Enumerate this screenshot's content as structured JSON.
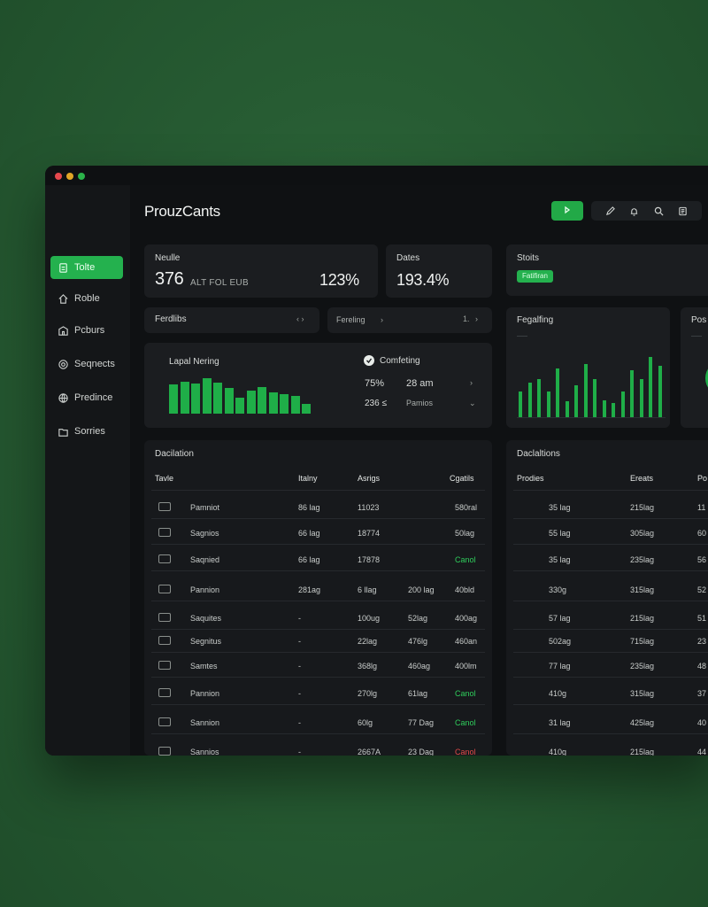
{
  "app": {
    "title": "ProuzCants"
  },
  "sidebar": {
    "items": [
      {
        "label": "Tolte",
        "icon": "user-icon",
        "active": true
      },
      {
        "label": "Roble",
        "icon": "home-icon",
        "active": false
      },
      {
        "label": "Pcburs",
        "icon": "building-icon",
        "active": false
      },
      {
        "label": "Seqnects",
        "icon": "settings-icon",
        "active": false
      },
      {
        "label": "Predince",
        "icon": "globe-icon",
        "active": false
      },
      {
        "label": "Sorries",
        "icon": "folder-icon",
        "active": false
      }
    ]
  },
  "toolbar": {
    "icons": [
      "edit-icon",
      "bell-icon",
      "search-icon",
      "document-icon"
    ],
    "primary_icon": "play-icon"
  },
  "stats": {
    "card1": {
      "label": "Neulle",
      "value": "376",
      "sub": "ALT FOL EUB",
      "pct": "123%"
    },
    "card2": {
      "label": "Dates",
      "value": "193.4%"
    },
    "card3": {
      "label": "Stoits",
      "badge": "Fatifiran"
    },
    "filter1": {
      "label": "Ferdlibs"
    },
    "filter2": {
      "label": "Fereling",
      "page": "1."
    },
    "chart_title": "Lapal Nering",
    "legend": {
      "title": "Comfeting",
      "row1_a": "75%",
      "row1_b": "28 am",
      "row2_a": "236 ≤",
      "row2_b": "Pamios"
    },
    "right_chart_title": "Fegalfing",
    "far_right_label": "Pos"
  },
  "chart_data": [
    {
      "type": "bar",
      "title": "Lapal Nering",
      "values": [
        34,
        37,
        35,
        41,
        36,
        30,
        18,
        27,
        31,
        25,
        22,
        20,
        11
      ],
      "ylim": [
        0,
        45
      ]
    },
    {
      "type": "bar",
      "title": "Fegalfing",
      "values": [
        22,
        30,
        33,
        22,
        42,
        14,
        28,
        46,
        33,
        15,
        12,
        22,
        41,
        33,
        52,
        45
      ],
      "ylim": [
        0,
        60
      ]
    }
  ],
  "table_left": {
    "title": "Dacilation",
    "headers": [
      "Tavle",
      "Italny",
      "Asrigs",
      "Cgatils"
    ],
    "rows": [
      {
        "name": "Pamniot",
        "c1": "86 lag",
        "c2": "11023",
        "c3": "",
        "c4": "580ral",
        "tone": ""
      },
      {
        "name": "Sagnios",
        "c1": "66 lag",
        "c2": "18774",
        "c3": "",
        "c4": "50lag",
        "tone": ""
      },
      {
        "name": "Saqnied",
        "c1": "66 lag",
        "c2": "17878",
        "c3": "",
        "c4": "Canol",
        "tone": "green"
      },
      {
        "name": "Pannion",
        "c1": "281ag",
        "c2": "6 llag",
        "c3": "200 lag",
        "c4": "40bld",
        "tone": ""
      },
      {
        "name": "Saquites",
        "c1": "-",
        "c2": "100ug",
        "c3": "52lag",
        "c4": "400ag",
        "tone": ""
      },
      {
        "name": "Segnitus",
        "c1": "-",
        "c2": "22lag",
        "c3": "476lg",
        "c4": "460an",
        "tone": ""
      },
      {
        "name": "Samtes",
        "c1": "-",
        "c2": "368lg",
        "c3": "460ag",
        "c4": "400lm",
        "tone": ""
      },
      {
        "name": "Pannion",
        "c1": "-",
        "c2": "270lg",
        "c3": "61lag",
        "c4": "Canol",
        "tone": "green"
      },
      {
        "name": "Sannion",
        "c1": "-",
        "c2": "60lg",
        "c3": "77 Dag",
        "c4": "Canol",
        "tone": "green"
      },
      {
        "name": "Sannios",
        "c1": "-",
        "c2": "2667A",
        "c3": "23 Dag",
        "c4": "Canol",
        "tone": "red"
      }
    ]
  },
  "table_right": {
    "title": "Daclaltions",
    "headers": [
      "Prodies",
      "Ereats",
      "Po"
    ],
    "rows": [
      {
        "c1": "35 lag",
        "c2": "215lag",
        "c3": "11"
      },
      {
        "c1": "55 lag",
        "c2": "305lag",
        "c3": "60"
      },
      {
        "c1": "35 lag",
        "c2": "235lag",
        "c3": "56"
      },
      {
        "c1": "330g",
        "c2": "315lag",
        "c3": "52"
      },
      {
        "c1": "57 lag",
        "c2": "215lag",
        "c3": "51"
      },
      {
        "c1": "502ag",
        "c2": "715lag",
        "c3": "23"
      },
      {
        "c1": "77 lag",
        "c2": "235lag",
        "c3": "48"
      },
      {
        "c1": "410g",
        "c2": "315lag",
        "c3": "37"
      },
      {
        "c1": "31 lag",
        "c2": "425lag",
        "c3": "40"
      },
      {
        "c1": "410g",
        "c2": "215lag",
        "c3": "44"
      }
    ]
  },
  "colors": {
    "accent": "#24b14e",
    "background": "#111315",
    "card": "#1b1d20",
    "danger": "#e24a4a"
  }
}
